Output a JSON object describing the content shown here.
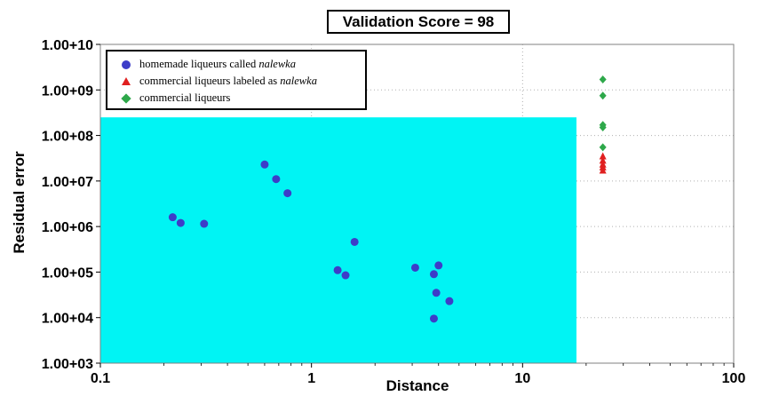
{
  "title": "Validation Score = 98",
  "chart_data": {
    "type": "scatter",
    "xlabel": "Distance",
    "ylabel": "Residual error",
    "xscale": "log",
    "yscale": "log",
    "xlim": [
      0.1,
      100
    ],
    "ylim": [
      1000,
      10000000000
    ],
    "x_ticks": [
      "0.1",
      "1",
      "10",
      "100"
    ],
    "y_ticks": [
      "1.00+03",
      "1.00+04",
      "1.00+05",
      "1.00+06",
      "1.00+07",
      "1.00+08",
      "1.00+09",
      "1.00+10"
    ],
    "grid": true,
    "legend_position": "top-left",
    "region": {
      "x": [
        0.1,
        18
      ],
      "y": [
        1000,
        250000000
      ],
      "color": "#00f4f4"
    },
    "series": [
      {
        "name": "homemade liqueurs called nalewka",
        "name_parts": [
          "homemade liqueurs called ",
          "nalewka"
        ],
        "marker": "circle",
        "color": "#3d3dc8",
        "points": [
          [
            0.22,
            1600000
          ],
          [
            0.24,
            1200000
          ],
          [
            0.31,
            1150000
          ],
          [
            0.6,
            23000000
          ],
          [
            0.68,
            11000000
          ],
          [
            0.77,
            5400000
          ],
          [
            1.33,
            110000
          ],
          [
            1.45,
            85000
          ],
          [
            1.6,
            460000
          ],
          [
            3.1,
            125000
          ],
          [
            3.8,
            90000
          ],
          [
            4.0,
            140000
          ],
          [
            3.9,
            35000
          ],
          [
            4.5,
            23000
          ],
          [
            3.8,
            9500
          ]
        ]
      },
      {
        "name": "commercial liqueurs labeled as nalewka",
        "name_parts": [
          "commercial liqueurs labeled as ",
          "nalewka"
        ],
        "marker": "triangle",
        "color": "#e02020",
        "points": [
          [
            24,
            35000000
          ],
          [
            24,
            28000000
          ],
          [
            24,
            23000000
          ],
          [
            24,
            20000000
          ],
          [
            24,
            17000000
          ]
        ]
      },
      {
        "name": "commercial liqueurs",
        "name_parts": [
          "commercial liqueurs",
          ""
        ],
        "marker": "diamond",
        "color": "#2ea84a",
        "points": [
          [
            24,
            1700000000
          ],
          [
            24,
            750000000
          ],
          [
            24,
            170000000
          ],
          [
            24,
            150000000
          ],
          [
            24,
            55000000
          ]
        ]
      }
    ]
  }
}
